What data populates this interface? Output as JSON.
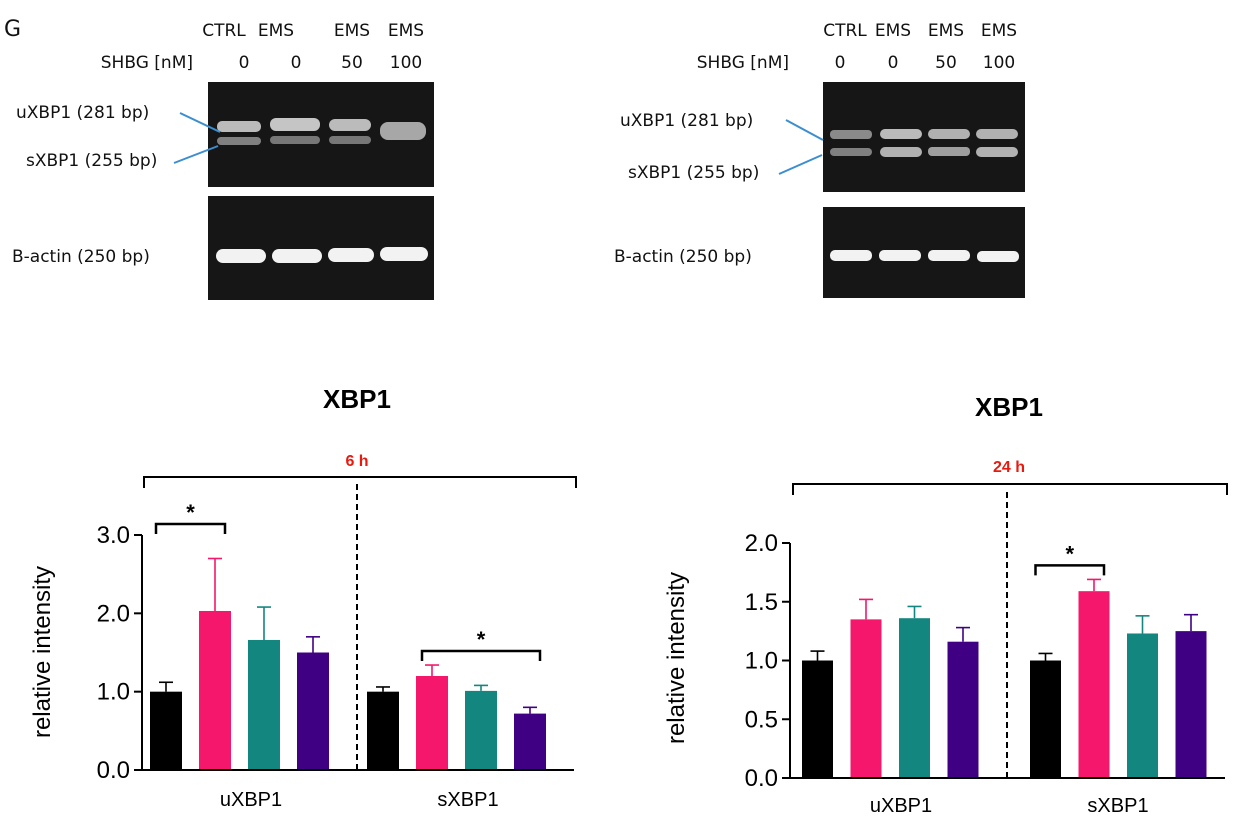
{
  "panel_letter": "G",
  "gels": [
    {
      "conc_label": "SHBG [nM]",
      "lanes": [
        {
          "treatment": "CTRL",
          "conc": "0"
        },
        {
          "treatment": "EMS",
          "conc": "0"
        },
        {
          "treatment": "EMS",
          "conc": "50"
        },
        {
          "treatment": "EMS",
          "conc": "100"
        }
      ],
      "band_labels": [
        "uXBP1 (281 bp)",
        "sXBP1 (255 bp)"
      ],
      "actin_label": "B-actin (250 bp)"
    },
    {
      "conc_label": "SHBG [nM]",
      "lanes": [
        {
          "treatment": "CTRL",
          "conc": "0"
        },
        {
          "treatment": "EMS",
          "conc": "0"
        },
        {
          "treatment": "EMS",
          "conc": "50"
        },
        {
          "treatment": "EMS",
          "conc": "100"
        }
      ],
      "band_labels": [
        "uXBP1 (281 bp)",
        "sXBP1 (255 bp)"
      ],
      "actin_label": "B-actin (250 bp)"
    }
  ],
  "colors": {
    "black": "#000000",
    "pink": "#f5176b",
    "teal": "#148680",
    "purple": "#3f0083",
    "time": "#e8190f"
  },
  "chart_data": [
    {
      "type": "bar",
      "title": "XBP1",
      "time_label": "6 h",
      "ylabel": "relative intensity",
      "xlabel": "",
      "ylim": [
        0,
        3.0
      ],
      "yticks": [
        "0.0",
        "1.0",
        "2.0",
        "3.0"
      ],
      "categories": [
        "uXBP1",
        "sXBP1"
      ],
      "series": [
        {
          "name": "CTRL 0",
          "color": "#000000",
          "values": [
            1.0,
            1.0
          ],
          "errors": [
            0.12,
            0.06
          ]
        },
        {
          "name": "EMS 0",
          "color": "#f5176b",
          "values": [
            2.03,
            1.2
          ],
          "errors": [
            0.67,
            0.14
          ]
        },
        {
          "name": "EMS 50",
          "color": "#148680",
          "values": [
            1.66,
            1.01
          ],
          "errors": [
            0.42,
            0.07
          ]
        },
        {
          "name": "EMS 100",
          "color": "#3f0083",
          "values": [
            1.5,
            0.72
          ],
          "errors": [
            0.2,
            0.08
          ]
        }
      ],
      "significance": [
        {
          "category": 0,
          "from": 0,
          "to": 1,
          "label": "*"
        },
        {
          "category": 1,
          "from": 1,
          "to": 3,
          "label": "*"
        }
      ]
    },
    {
      "type": "bar",
      "title": "XBP1",
      "time_label": "24 h",
      "ylabel": "relative intensity",
      "xlabel": "",
      "ylim": [
        0,
        2.0
      ],
      "yticks": [
        "0.0",
        "0.5",
        "1.0",
        "1.5",
        "2.0"
      ],
      "categories": [
        "uXBP1",
        "sXBP1"
      ],
      "series": [
        {
          "name": "CTRL 0",
          "color": "#000000",
          "values": [
            1.0,
            1.0
          ],
          "errors": [
            0.08,
            0.06
          ]
        },
        {
          "name": "EMS 0",
          "color": "#f5176b",
          "values": [
            1.35,
            1.59
          ],
          "errors": [
            0.17,
            0.1
          ]
        },
        {
          "name": "EMS 50",
          "color": "#148680",
          "values": [
            1.36,
            1.23
          ],
          "errors": [
            0.1,
            0.15
          ]
        },
        {
          "name": "EMS 100",
          "color": "#3f0083",
          "values": [
            1.16,
            1.25
          ],
          "errors": [
            0.12,
            0.14
          ]
        }
      ],
      "significance": [
        {
          "category": 1,
          "from": 0,
          "to": 1,
          "label": "*"
        }
      ]
    }
  ]
}
